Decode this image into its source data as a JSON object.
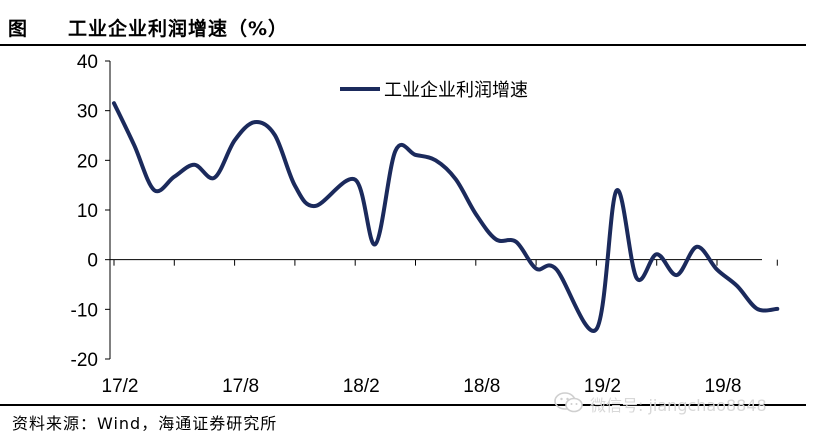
{
  "header": {
    "label": "图",
    "title": "工业企业利润增速（%）"
  },
  "source": "资料来源：Wind，海通证券研究所",
  "watermark": {
    "icon": "wechat-icon",
    "text": "微信号: jiangchao8848"
  },
  "chart_data": {
    "type": "line",
    "title": "工业企业利润增速（%）",
    "xlabel": "",
    "ylabel": "",
    "ylim": [
      -20,
      40
    ],
    "yticks": [
      -20,
      -10,
      0,
      10,
      20,
      30,
      40
    ],
    "xlim": [
      "17/2",
      "19/11"
    ],
    "xticks": [
      "17/2",
      "17/8",
      "18/2",
      "18/8",
      "19/2",
      "19/8"
    ],
    "grid": false,
    "legend": "top-center",
    "series": [
      {
        "name": "工业企业利润增速",
        "color": "#1b2a5c",
        "x": [
          "17/2",
          "17/3",
          "17/4",
          "17/5",
          "17/6",
          "17/7",
          "17/8",
          "17/9",
          "17/10",
          "17/11",
          "17/12",
          "18/2",
          "18/3",
          "18/4",
          "18/5",
          "18/6",
          "18/7",
          "18/8",
          "18/9",
          "18/10",
          "18/11",
          "18/12",
          "19/2",
          "19/3",
          "19/4",
          "19/5",
          "19/6",
          "19/7",
          "19/8",
          "19/9",
          "19/10",
          "19/11"
        ],
        "values": [
          31.5,
          23.1,
          14.0,
          16.7,
          19.1,
          16.5,
          24.0,
          27.7,
          25.1,
          14.9,
          10.8,
          16.1,
          3.1,
          21.9,
          21.1,
          20.0,
          16.2,
          9.2,
          4.1,
          3.6,
          -1.8,
          -1.9,
          -14.0,
          13.9,
          -3.7,
          1.1,
          -3.1,
          2.6,
          -2.0,
          -5.3,
          -9.9,
          -9.9
        ]
      }
    ]
  }
}
